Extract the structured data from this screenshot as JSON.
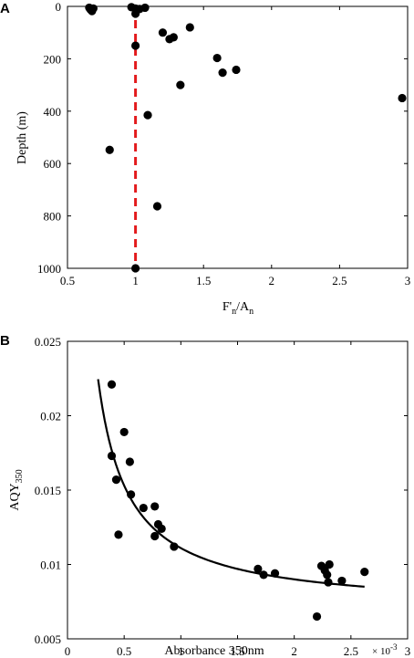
{
  "chart_data": [
    {
      "panel": "A",
      "type": "scatter",
      "xlabel_main": "F'",
      "xlabel_sub1": "n",
      "xlabel_mid": "/A",
      "xlabel_sub2": "n",
      "ylabel": "Depth (m)",
      "xlim": [
        0.5,
        3
      ],
      "ylim": [
        1000,
        0
      ],
      "y_reversed": true,
      "xticks": [
        "0.5",
        "1",
        "1.5",
        "2",
        "2.5",
        "3"
      ],
      "xtick_values": [
        0.5,
        1,
        1.5,
        2,
        2.5,
        3
      ],
      "yticks": [
        "0",
        "200",
        "400",
        "600",
        "800",
        "1000"
      ],
      "ytick_values": [
        0,
        200,
        400,
        600,
        800,
        1000
      ],
      "reference_line": {
        "x": 1,
        "style": "dashed",
        "color": "#e31a1c"
      },
      "marker_color": "#000000",
      "points": [
        {
          "x": 0.66,
          "y": 5
        },
        {
          "x": 0.67,
          "y": 12
        },
        {
          "x": 0.68,
          "y": 18
        },
        {
          "x": 0.69,
          "y": 8
        },
        {
          "x": 0.97,
          "y": 3
        },
        {
          "x": 1.0,
          "y": 8
        },
        {
          "x": 1.03,
          "y": 10
        },
        {
          "x": 1.0,
          "y": 28
        },
        {
          "x": 1.07,
          "y": 5
        },
        {
          "x": 1.0,
          "y": 150
        },
        {
          "x": 1.4,
          "y": 80
        },
        {
          "x": 1.2,
          "y": 100
        },
        {
          "x": 1.28,
          "y": 118
        },
        {
          "x": 1.25,
          "y": 125
        },
        {
          "x": 1.6,
          "y": 197
        },
        {
          "x": 1.74,
          "y": 242
        },
        {
          "x": 1.64,
          "y": 253
        },
        {
          "x": 1.33,
          "y": 300
        },
        {
          "x": 2.96,
          "y": 350
        },
        {
          "x": 1.09,
          "y": 415
        },
        {
          "x": 0.81,
          "y": 548
        },
        {
          "x": 1.16,
          "y": 763
        },
        {
          "x": 1.0,
          "y": 1000
        }
      ]
    },
    {
      "panel": "B",
      "type": "scatter",
      "xlabel": "Absorbance 350nm",
      "x_multiplier": "× 10",
      "x_multiplier_exp": "-3",
      "ylabel_main": "AQY",
      "ylabel_sub": "350",
      "xlim": [
        0,
        3
      ],
      "ylim": [
        0.005,
        0.025
      ],
      "xticks": [
        "0",
        "0.5",
        "1",
        "1.5",
        "2",
        "2.5",
        "3"
      ],
      "xtick_values": [
        0,
        0.5,
        1,
        1.5,
        2,
        2.5,
        3
      ],
      "yticks": [
        "0.005",
        "0.01",
        "0.015",
        "0.02",
        "0.025"
      ],
      "ytick_values": [
        0.005,
        0.01,
        0.015,
        0.02,
        0.025
      ],
      "marker_color": "#000000",
      "fit_curve": {
        "form": "y = a / x + b",
        "a": 0.0042,
        "b": 0.0069,
        "x_start": 0.27,
        "x_end": 2.62
      },
      "points": [
        {
          "x": 0.39,
          "y": 0.0221
        },
        {
          "x": 0.39,
          "y": 0.0173
        },
        {
          "x": 0.5,
          "y": 0.0189
        },
        {
          "x": 0.43,
          "y": 0.0157
        },
        {
          "x": 0.55,
          "y": 0.0169
        },
        {
          "x": 0.56,
          "y": 0.0147
        },
        {
          "x": 0.45,
          "y": 0.012
        },
        {
          "x": 0.67,
          "y": 0.0138
        },
        {
          "x": 0.77,
          "y": 0.0139
        },
        {
          "x": 0.8,
          "y": 0.0127
        },
        {
          "x": 0.83,
          "y": 0.0124
        },
        {
          "x": 0.77,
          "y": 0.0119
        },
        {
          "x": 0.94,
          "y": 0.0112
        },
        {
          "x": 1.68,
          "y": 0.0097
        },
        {
          "x": 1.73,
          "y": 0.0093
        },
        {
          "x": 1.83,
          "y": 0.0094
        },
        {
          "x": 2.24,
          "y": 0.0099
        },
        {
          "x": 2.27,
          "y": 0.0096
        },
        {
          "x": 2.31,
          "y": 0.01
        },
        {
          "x": 2.29,
          "y": 0.0093
        },
        {
          "x": 2.3,
          "y": 0.0088
        },
        {
          "x": 2.42,
          "y": 0.0089
        },
        {
          "x": 2.62,
          "y": 0.0095
        },
        {
          "x": 2.2,
          "y": 0.0065
        }
      ]
    }
  ]
}
